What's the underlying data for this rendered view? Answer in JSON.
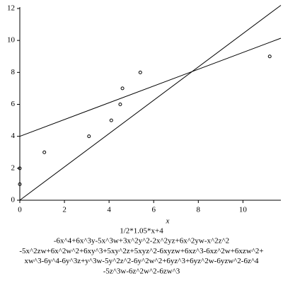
{
  "chart_data": {
    "type": "scatter",
    "xlabel": "x",
    "xlim": [
      0,
      11.7
    ],
    "ylim": [
      0,
      12
    ],
    "xticks": [
      0,
      2,
      4,
      6,
      8,
      10
    ],
    "yticks": [
      0,
      2,
      4,
      6,
      8,
      10,
      12
    ],
    "grid": false,
    "series": [
      {
        "type": "scatter",
        "color": "#000000",
        "x": [
          0,
          0,
          1.1,
          3.1,
          4.1,
          4.5,
          4.6,
          5.4,
          11.2
        ],
        "values": [
          1,
          2,
          3,
          4,
          5,
          6,
          7,
          8,
          9
        ]
      },
      {
        "type": "line",
        "color": "#000000",
        "x": [
          0,
          11.7
        ],
        "values": [
          4,
          10.14
        ]
      },
      {
        "type": "line",
        "color": "#000000",
        "x": [
          0,
          11.7
        ],
        "values": [
          0,
          12.2
        ]
      }
    ],
    "annotations": [
      "1/2*1.05*x+4",
      "-6x^4+6x^3y-5x^3w+3x^2y^2-2x^2yz+6x^2yw-x^2z^2",
      "-5x^2zw+6x^2w^2+6xy^3+5xy^2z+5xyz^2-6xyzw+6xz^3-6xz^2w+6xzw^2+",
      "xw^3-6y^4-6y^3z+y^3w-5y^2z^2-6y^2w^2+6yz^3+6yz^2w-6yzw^2-6z^4",
      "-5z^3w-6z^2w^2-6zw^3"
    ]
  }
}
